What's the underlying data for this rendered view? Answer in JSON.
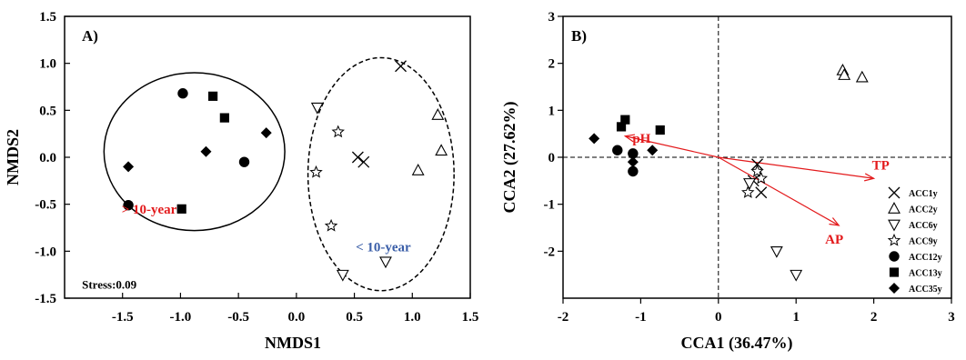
{
  "colors": {
    "red": "#e31a1c",
    "blue": "#3a5ea8",
    "arrow": "#e31a1c",
    "marker": "#000000"
  },
  "chart_data": [
    {
      "type": "scatter",
      "panel": "A)",
      "xlabel": "NMDS1",
      "ylabel": "NMDS2",
      "xlim": [
        -2.0,
        1.5
      ],
      "ylim": [
        -1.5,
        1.5
      ],
      "xticks": [
        "-1.5",
        "-1.0",
        "-0.5",
        "0.0",
        "0.5",
        "1.0",
        "1.5"
      ],
      "xtick_values": [
        -1.5,
        -1.0,
        -0.5,
        0.0,
        0.5,
        1.0,
        1.5
      ],
      "yticks": [
        "1.5",
        "1.0",
        "0.5",
        "0.0",
        "-0.5",
        "-1.0",
        "-1.5"
      ],
      "ytick_values": [
        1.5,
        1.0,
        0.5,
        0.0,
        -0.5,
        -1.0,
        -1.5
      ],
      "annotations": [
        {
          "text": "> 10-year",
          "x": -1.27,
          "y": -0.6,
          "color": "red"
        },
        {
          "text": "< 10-year",
          "x": 0.75,
          "y": -1.0,
          "color": "blue"
        },
        {
          "text": "Stress:0.09",
          "x": -1.85,
          "y": -1.4,
          "color": "black"
        }
      ],
      "groups": [
        {
          "style": "solid",
          "cx": -0.88,
          "cy": 0.06,
          "rx": 0.78,
          "ry": 0.84
        },
        {
          "style": "dashed",
          "cx": 0.73,
          "cy": -0.18,
          "rx": 0.63,
          "ry": 1.24
        }
      ],
      "series": [
        {
          "marker": "x",
          "points": [
            [
              0.9,
              0.97
            ],
            [
              0.53,
              0.0
            ],
            [
              0.58,
              -0.05
            ]
          ]
        },
        {
          "marker": "triangle-up",
          "points": [
            [
              1.22,
              0.45
            ],
            [
              1.25,
              0.07
            ],
            [
              1.05,
              -0.14
            ]
          ]
        },
        {
          "marker": "triangle-down",
          "points": [
            [
              0.18,
              0.53
            ],
            [
              0.77,
              -1.11
            ],
            [
              0.4,
              -1.25
            ]
          ]
        },
        {
          "marker": "star",
          "points": [
            [
              0.36,
              0.27
            ],
            [
              0.17,
              -0.16
            ],
            [
              0.3,
              -0.73
            ]
          ]
        },
        {
          "marker": "circle",
          "points": [
            [
              -0.98,
              0.68
            ],
            [
              -0.45,
              -0.05
            ],
            [
              -1.45,
              -0.51
            ]
          ]
        },
        {
          "marker": "square",
          "points": [
            [
              -0.72,
              0.65
            ],
            [
              -0.62,
              0.42
            ],
            [
              -0.99,
              -0.55
            ]
          ]
        },
        {
          "marker": "diamond",
          "points": [
            [
              -0.78,
              0.06
            ],
            [
              -0.26,
              0.26
            ],
            [
              -1.45,
              -0.1
            ]
          ]
        }
      ]
    },
    {
      "type": "scatter",
      "panel": "B)",
      "xlabel": "CCA1 (36.47%)",
      "ylabel": "CCA2 (27.62%)",
      "xlim": [
        -2,
        3
      ],
      "ylim": [
        -3,
        3
      ],
      "xticks": [
        "-2",
        "-1",
        "0",
        "1",
        "2",
        "3"
      ],
      "xtick_values": [
        -2,
        -1,
        0,
        1,
        2,
        3
      ],
      "yticks": [
        "3",
        "2",
        "1",
        "0",
        "-1",
        "-2"
      ],
      "ytick_values": [
        3,
        2,
        1,
        0,
        -1,
        -2
      ],
      "env_vectors": [
        {
          "label": "pH",
          "x": -1.2,
          "y": 0.45
        },
        {
          "label": "TP",
          "x": 2.0,
          "y": -0.45
        },
        {
          "label": "AP",
          "x": 1.55,
          "y": -1.45
        }
      ],
      "legend": {
        "position": "right",
        "entries": [
          {
            "marker": "x",
            "label": "ACC1y"
          },
          {
            "marker": "triangle-up",
            "label": "ACC2y"
          },
          {
            "marker": "triangle-down",
            "label": "ACC6y"
          },
          {
            "marker": "star",
            "label": "ACC9y"
          },
          {
            "marker": "circle",
            "label": "ACC12y"
          },
          {
            "marker": "square",
            "label": "ACC13y"
          },
          {
            "marker": "diamond",
            "label": "ACC35y"
          }
        ]
      },
      "series": [
        {
          "marker": "x",
          "points": [
            [
              0.5,
              -0.15
            ],
            [
              0.45,
              -0.5
            ],
            [
              0.55,
              -0.75
            ]
          ]
        },
        {
          "marker": "triangle-up",
          "points": [
            [
              1.6,
              1.85
            ],
            [
              1.62,
              1.75
            ],
            [
              1.85,
              1.7
            ]
          ]
        },
        {
          "marker": "triangle-down",
          "points": [
            [
              0.4,
              -0.55
            ],
            [
              0.75,
              -2.0
            ],
            [
              1.0,
              -2.5
            ]
          ]
        },
        {
          "marker": "star",
          "points": [
            [
              0.5,
              -0.3
            ],
            [
              0.55,
              -0.45
            ],
            [
              0.38,
              -0.75
            ]
          ]
        },
        {
          "marker": "circle",
          "points": [
            [
              -1.3,
              0.15
            ],
            [
              -1.1,
              0.08
            ],
            [
              -1.1,
              -0.3
            ]
          ]
        },
        {
          "marker": "square",
          "points": [
            [
              -1.2,
              0.8
            ],
            [
              -1.25,
              0.65
            ],
            [
              -0.75,
              0.58
            ]
          ]
        },
        {
          "marker": "diamond",
          "points": [
            [
              -1.6,
              0.4
            ],
            [
              -0.85,
              0.15
            ],
            [
              -1.1,
              -0.1
            ]
          ]
        }
      ]
    }
  ]
}
